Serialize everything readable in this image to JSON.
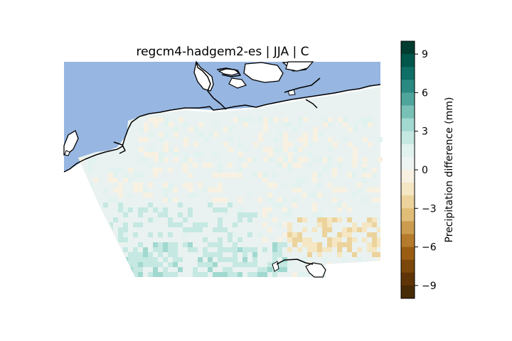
{
  "title": "regcm4-hadgem2-es | JJA | C",
  "colorbar": {
    "label": "Precipitation difference (mm)",
    "ticks": [
      "9",
      "6",
      "3",
      "0",
      "−3",
      "−6",
      "−9"
    ],
    "tick_values": [
      9,
      6,
      3,
      0,
      -3,
      -6,
      -9
    ],
    "range": [
      -10,
      10
    ],
    "levels": 20,
    "colors_high_to_low": [
      "#003c30",
      "#01564b",
      "#0f6e65",
      "#2a8a81",
      "#4fa59c",
      "#79c0b6",
      "#a1d8cf",
      "#c5e8e2",
      "#e1f2ef",
      "#edf4f2",
      "#f8f1e2",
      "#f5e6c4",
      "#ecd39c",
      "#dfbd76",
      "#cb9c4f",
      "#b57b2c",
      "#9a5d12",
      "#7b470a",
      "#5f3406",
      "#472a06"
    ]
  },
  "map": {
    "sea_color": "#97b6e1",
    "domain_base_color": "#e9f2f0",
    "coastline_color": "#000000"
  }
}
